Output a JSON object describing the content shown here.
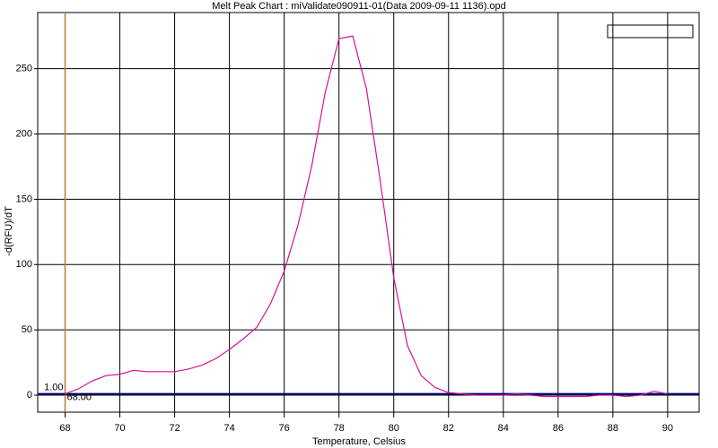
{
  "chart_data": {
    "type": "line",
    "title": "Melt Peak Chart : miValidate090911-01(Data 2009-09-11 1136).opd",
    "xlabel": "Temperature, Celsius",
    "ylabel": "-d(RFU)/dT",
    "x": [
      68,
      68.5,
      69,
      69.5,
      70,
      70.5,
      71,
      71.5,
      72,
      72.5,
      73,
      73.5,
      74,
      74.5,
      75,
      75.5,
      76,
      76.5,
      77,
      77.5,
      78,
      78.5,
      79,
      79.5,
      80,
      80.5,
      81,
      81.5,
      82,
      82.5,
      83,
      83.5,
      84,
      84.5,
      85,
      85.5,
      86,
      86.5,
      87,
      87.5,
      88,
      88.5,
      89,
      89.5,
      90
    ],
    "series": [
      {
        "color": "#d6109c",
        "values": [
          1,
          5,
          11,
          15,
          16,
          19,
          18,
          18,
          18,
          20,
          23,
          28,
          35,
          43,
          52,
          70,
          95,
          130,
          175,
          232,
          273,
          275,
          235,
          165,
          90,
          38,
          15,
          6,
          2,
          1,
          0,
          0,
          0,
          1,
          0,
          -1,
          -1,
          -1,
          -1,
          0,
          0,
          -1,
          0,
          3,
          1
        ]
      }
    ],
    "threshold": {
      "value": 1,
      "label": "1.00",
      "color": "#000080"
    },
    "marker": {
      "value": 68,
      "label": "68.00",
      "color": "#c87830"
    },
    "xlim": [
      67,
      91.15
    ],
    "ylim": [
      -13,
      293
    ],
    "xticks": [
      68,
      70,
      72,
      74,
      76,
      78,
      80,
      82,
      84,
      86,
      88,
      90
    ],
    "yticks": [
      0,
      50,
      100,
      150,
      200,
      250
    ],
    "grid": true
  }
}
